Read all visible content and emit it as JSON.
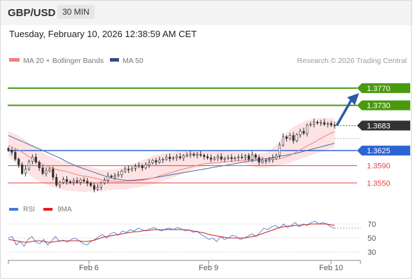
{
  "header": {
    "pair": "GBP/USD",
    "timeframe": "30 MIN",
    "datetime": "Tuesday, February 10, 2026 12:38:59 AM CET"
  },
  "legend": {
    "ma20_label": "MA 20 + Bollinger Bands",
    "ma50_label": "MA 50",
    "copyright": "Research © 2026 Trading Central"
  },
  "rsi_legend": {
    "rsi_label": "RSI",
    "ma_label": "9MA"
  },
  "colors": {
    "green": "#4a9a10",
    "blue": "#2d64d4",
    "red": "#e84040",
    "ma20": "#f08080",
    "ma50": "#4a6aa8",
    "band": "#fde0e0",
    "candle": "#333333",
    "current": "#333333",
    "arrow": "#2a5aa8"
  },
  "chart_data": [
    {
      "type": "candlestick",
      "y_range": [
        1.3492,
        1.3812
      ],
      "x_ticks": [
        "Feb 6",
        "Feb 9",
        "Feb 10"
      ],
      "levels": [
        {
          "value": 1.377,
          "label": "1.3770",
          "kind": "resistance-2"
        },
        {
          "value": 1.373,
          "label": "1.3730",
          "kind": "resistance-1"
        },
        {
          "value": 1.3683,
          "label": "1.3683",
          "kind": "last-price"
        },
        {
          "value": 1.3625,
          "label": "1.3625",
          "kind": "pivot"
        },
        {
          "value": 1.359,
          "label": "1.3590",
          "kind": "support-1"
        },
        {
          "value": 1.355,
          "label": "1.3550",
          "kind": "support-2"
        }
      ],
      "close": [
        1.3626,
        1.3621,
        1.3605,
        1.3592,
        1.3572,
        1.3582,
        1.36,
        1.361,
        1.3598,
        1.3585,
        1.3572,
        1.3578,
        1.3582,
        1.3563,
        1.3545,
        1.3551,
        1.3558,
        1.3553,
        1.3551,
        1.3555,
        1.3552,
        1.3557,
        1.3554,
        1.3549,
        1.3544,
        1.3535,
        1.354,
        1.355,
        1.3556,
        1.3566,
        1.3564,
        1.3567,
        1.3569,
        1.3577,
        1.3582,
        1.358,
        1.3584,
        1.3588,
        1.359,
        1.3585,
        1.3592,
        1.3597,
        1.3602,
        1.3598,
        1.3603,
        1.3605,
        1.361,
        1.3606,
        1.3608,
        1.3611,
        1.3608,
        1.3613,
        1.3615,
        1.3617,
        1.3614,
        1.3616,
        1.3614,
        1.3611,
        1.3608,
        1.3605,
        1.3608,
        1.3611,
        1.3605,
        1.3607,
        1.3609,
        1.3606,
        1.3608,
        1.361,
        1.3609,
        1.3613,
        1.3605,
        1.3615,
        1.3609,
        1.3598,
        1.3602,
        1.3601,
        1.3604,
        1.3608,
        1.3614,
        1.3638,
        1.3657,
        1.3653,
        1.366,
        1.3648,
        1.3662,
        1.367,
        1.3665,
        1.3684,
        1.3686,
        1.3691,
        1.3689,
        1.369,
        1.3686,
        1.3688,
        1.3684,
        1.3683
      ],
      "ma20": [
        1.3637,
        1.3632,
        1.3627,
        1.362,
        1.3612,
        1.3605,
        1.3598,
        1.3593,
        1.3588,
        1.3584,
        1.358,
        1.3578,
        1.3576,
        1.3572,
        1.3569,
        1.3566,
        1.3565,
        1.3562,
        1.356,
        1.3557,
        1.3555,
        1.3554,
        1.3553,
        1.3553,
        1.3554,
        1.3554,
        1.3555,
        1.3556,
        1.3558,
        1.3561,
        1.3564,
        1.3568,
        1.3571,
        1.3574,
        1.3578,
        1.3581,
        1.3584,
        1.3587,
        1.359,
        1.3593,
        1.3595,
        1.3596,
        1.3597,
        1.3598,
        1.3599,
        1.36,
        1.3601,
        1.3602,
        1.3603,
        1.3604,
        1.3605,
        1.3605,
        1.3605,
        1.3605,
        1.3604,
        1.3606,
        1.361,
        1.3614,
        1.362,
        1.3627,
        1.3633,
        1.3639,
        1.3645,
        1.3652,
        1.3658,
        1.3664,
        1.3669
      ],
      "bb_upper": [
        1.367,
        1.3665,
        1.366,
        1.3653,
        1.3645,
        1.3637,
        1.3628,
        1.362,
        1.3613,
        1.3608,
        1.3603,
        1.36,
        1.3598,
        1.3594,
        1.3592,
        1.359,
        1.3588,
        1.3586,
        1.3583,
        1.3581,
        1.3581,
        1.3582,
        1.3583,
        1.3586,
        1.3589,
        1.3593,
        1.3597,
        1.3602,
        1.3607,
        1.3612,
        1.3615,
        1.3617,
        1.3619,
        1.3621,
        1.3623,
        1.3624,
        1.3625,
        1.3625,
        1.3625,
        1.3624,
        1.3624,
        1.3623,
        1.3624,
        1.3624,
        1.3624,
        1.3623,
        1.3622,
        1.3622,
        1.3621,
        1.362,
        1.3619,
        1.3619,
        1.362,
        1.3626,
        1.3636,
        1.365,
        1.3664,
        1.3674,
        1.3682,
        1.3688,
        1.3693,
        1.3697,
        1.3699,
        1.3701,
        1.3701,
        1.37,
        1.3699
      ],
      "bb_lower": [
        1.361,
        1.36,
        1.359,
        1.358,
        1.357,
        1.3562,
        1.3555,
        1.3549,
        1.3544,
        1.354,
        1.3537,
        1.3534,
        1.3532,
        1.3531,
        1.353,
        1.3529,
        1.353,
        1.353,
        1.3531,
        1.3532,
        1.3533,
        1.3534,
        1.3535,
        1.3535,
        1.3536,
        1.3537,
        1.3539,
        1.3541,
        1.3543,
        1.3546,
        1.3549,
        1.3553,
        1.3557,
        1.3561,
        1.3565,
        1.357,
        1.3575,
        1.358,
        1.3584,
        1.3587,
        1.359,
        1.3592,
        1.3593,
        1.3594,
        1.3595,
        1.3596,
        1.3596,
        1.3597,
        1.3595,
        1.359,
        1.3586,
        1.3585,
        1.3585,
        1.3587,
        1.3589,
        1.3591,
        1.3593,
        1.3597,
        1.3601,
        1.3605,
        1.3609,
        1.3613,
        1.3617,
        1.3621,
        1.3625,
        1.3629,
        1.3632
      ],
      "ma50": [
        1.366,
        1.3655,
        1.365,
        1.3645,
        1.364,
        1.3635,
        1.363,
        1.3625,
        1.362,
        1.3615,
        1.361,
        1.3604,
        1.3598,
        1.3593,
        1.3588,
        1.3584,
        1.358,
        1.3576,
        1.3572,
        1.3568,
        1.3564,
        1.3561,
        1.3559,
        1.3557,
        1.3556,
        1.3556,
        1.3557,
        1.3558,
        1.3559,
        1.3561,
        1.3563,
        1.3565,
        1.3567,
        1.3569,
        1.3571,
        1.3573,
        1.3575,
        1.3577,
        1.3579,
        1.3581,
        1.3583,
        1.3585,
        1.3587,
        1.3589,
        1.3591,
        1.3593,
        1.3595,
        1.3597,
        1.3599,
        1.3601,
        1.3602,
        1.3604,
        1.3606,
        1.3608,
        1.361,
        1.3612,
        1.3614,
        1.3616,
        1.3618,
        1.3621,
        1.3624,
        1.3627,
        1.363,
        1.3633,
        1.3636,
        1.3639,
        1.3642
      ]
    },
    {
      "type": "line",
      "y_ticks": [
        "70",
        "50",
        "30"
      ],
      "y_range": [
        20,
        80
      ],
      "rsi": [
        50,
        52,
        40,
        45,
        38,
        48,
        52,
        44,
        42,
        48,
        40,
        46,
        52,
        45,
        47,
        44,
        48,
        50,
        46,
        42,
        40,
        45,
        48,
        52,
        55,
        50,
        56,
        58,
        54,
        60,
        58,
        62,
        60,
        64,
        62,
        60,
        63,
        65,
        62,
        60,
        63,
        64,
        62,
        65,
        63,
        60,
        62,
        58,
        60,
        55,
        52,
        48,
        50,
        45,
        52,
        48,
        50,
        54,
        52,
        48,
        50,
        53,
        56,
        52,
        58,
        64,
        62,
        66,
        68,
        64,
        70,
        65,
        68,
        72,
        66,
        70,
        68,
        72,
        74,
        70,
        72,
        70,
        66,
        64
      ],
      "rsi_ma": [
        48,
        47,
        46,
        45,
        44,
        44,
        45,
        46,
        46,
        45,
        44,
        44,
        45,
        46,
        46,
        46,
        46,
        46,
        46,
        45,
        45,
        46,
        47,
        49,
        51,
        52,
        53,
        54,
        55,
        56,
        57,
        58,
        59,
        59,
        60,
        61,
        61,
        62,
        62,
        62,
        62,
        62,
        62,
        62,
        62,
        62,
        61,
        60,
        59,
        58,
        57,
        55,
        54,
        53,
        52,
        51,
        50,
        50,
        50,
        50,
        50,
        51,
        52,
        53,
        55,
        57,
        59,
        61,
        63,
        65,
        66,
        67,
        67,
        68,
        68,
        69,
        69,
        70,
        70,
        70,
        70,
        70,
        69,
        68
      ]
    }
  ]
}
